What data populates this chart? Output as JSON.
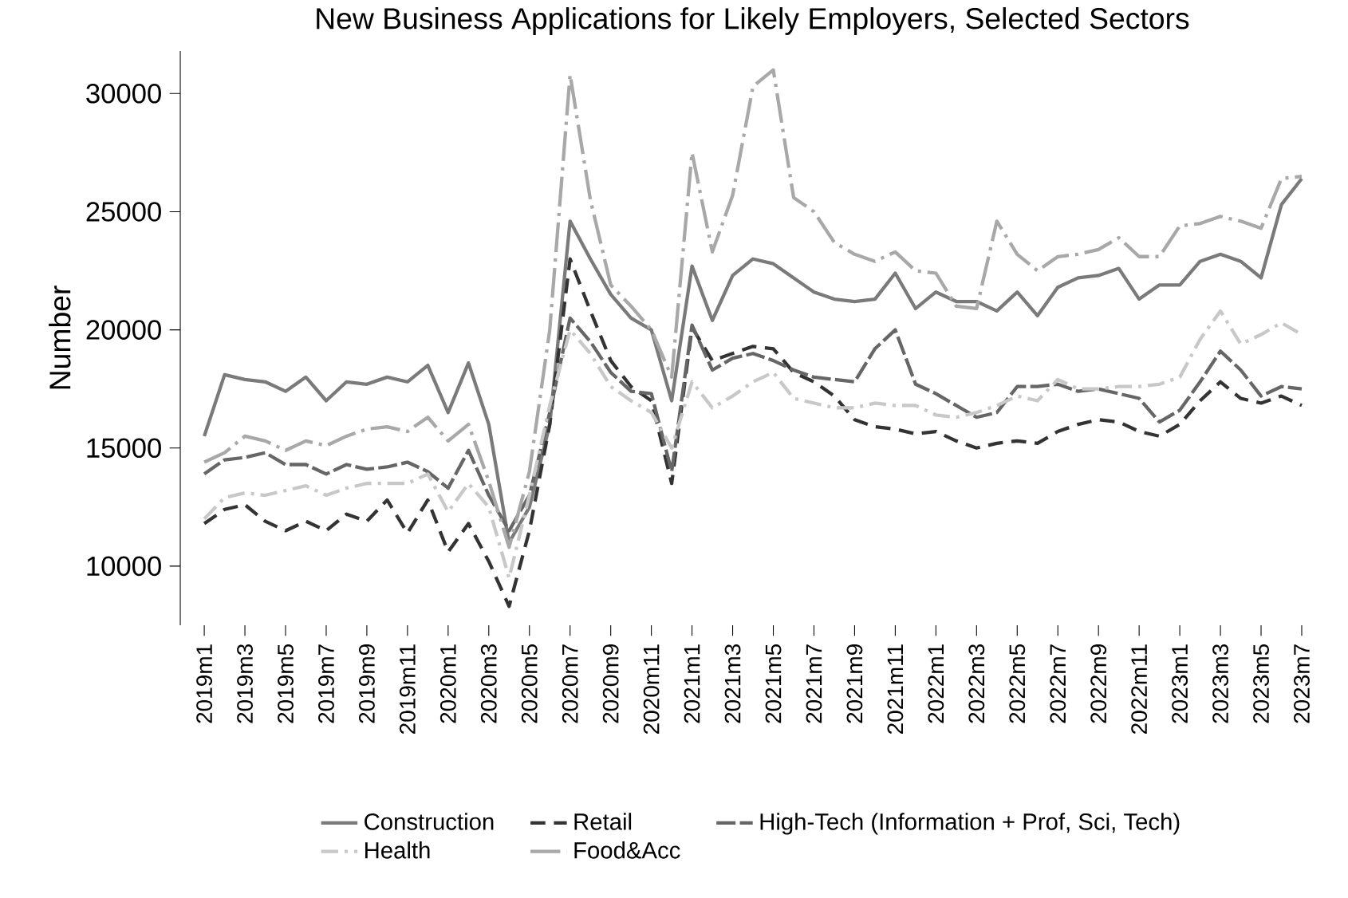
{
  "chart_data": {
    "type": "line",
    "title": "New Business Applications for Likely Employers, Selected Sectors",
    "ylabel": "Number",
    "categories": [
      "2019m1",
      null,
      "2019m3",
      null,
      "2019m5",
      null,
      "2019m7",
      null,
      "2019m9",
      null,
      "2019m11",
      null,
      "2020m1",
      null,
      "2020m3",
      null,
      "2020m5",
      null,
      "2020m7",
      null,
      "2020m9",
      null,
      "2020m11",
      null,
      "2021m1",
      null,
      "2021m3",
      null,
      "2021m5",
      null,
      "2021m7",
      null,
      "2021m9",
      null,
      "2021m11",
      null,
      "2022m1",
      null,
      "2022m3",
      null,
      "2022m5",
      null,
      "2022m7",
      null,
      "2022m9",
      null,
      "2022m11",
      null,
      "2023m1",
      null,
      "2023m3",
      null,
      "2023m5",
      null,
      "2023m7"
    ],
    "series": [
      {
        "name": "Construction",
        "color": "#7a7a7a",
        "line_style": "solid",
        "values": [
          15500,
          18100,
          17900,
          17800,
          17400,
          18000,
          17000,
          17800,
          17700,
          18000,
          17800,
          18500,
          16500,
          18600,
          16000,
          11000,
          12500,
          16000,
          24600,
          23000,
          21500,
          20500,
          20000,
          17000,
          22700,
          20400,
          22300,
          23000,
          22800,
          22200,
          21600,
          21300,
          21200,
          21300,
          22400,
          20900,
          21600,
          21200,
          21200,
          20800,
          21600,
          20600,
          21800,
          22200,
          22300,
          22600,
          21300,
          21900,
          21900,
          22900,
          23200,
          22900,
          22200,
          25300,
          26400
        ]
      },
      {
        "name": "Retail",
        "color": "#333333",
        "line_style": "dashed",
        "values": [
          11800,
          12400,
          12600,
          11900,
          11500,
          11900,
          11500,
          12200,
          11900,
          12800,
          11400,
          12800,
          10600,
          11800,
          10200,
          8300,
          11500,
          16000,
          23000,
          20800,
          18700,
          17600,
          17000,
          13500,
          20100,
          18700,
          19000,
          19300,
          19200,
          18200,
          17800,
          17200,
          16200,
          15900,
          15800,
          15600,
          15700,
          15300,
          15000,
          15200,
          15300,
          15200,
          15700,
          16000,
          16200,
          16100,
          15700,
          15500,
          16000,
          17000,
          17800,
          17100,
          16900,
          17200,
          16800
        ]
      },
      {
        "name": "High-Tech (Information + Prof, Sci, Tech)",
        "color": "#666666",
        "line_style": "longdashed",
        "values": [
          13900,
          14500,
          14600,
          14800,
          14300,
          14300,
          13900,
          14300,
          14100,
          14200,
          14400,
          14000,
          13300,
          14900,
          13000,
          11500,
          13000,
          16500,
          20500,
          19500,
          18200,
          17400,
          17300,
          14000,
          20200,
          18300,
          18800,
          19000,
          18700,
          18300,
          18000,
          17900,
          17800,
          19200,
          20000,
          17700,
          17300,
          16800,
          16300,
          16500,
          17600,
          17600,
          17700,
          17400,
          17500,
          17300,
          17100,
          16100,
          16600,
          17800,
          19100,
          18300,
          17200,
          17600,
          17500
        ]
      },
      {
        "name": "Health",
        "color": "#c8c8c8",
        "line_style": "dashdot",
        "values": [
          12000,
          12900,
          13100,
          13000,
          13200,
          13400,
          13000,
          13300,
          13500,
          13500,
          13500,
          13900,
          12300,
          13500,
          12500,
          9500,
          13000,
          16800,
          20000,
          19000,
          17600,
          17000,
          16500,
          15000,
          17800,
          16700,
          17200,
          17800,
          18200,
          17100,
          16900,
          16700,
          16700,
          16900,
          16800,
          16800,
          16400,
          16300,
          16500,
          16800,
          17200,
          17000,
          17900,
          17500,
          17500,
          17600,
          17600,
          17700,
          18000,
          19600,
          20800,
          19400,
          19800,
          20300,
          19800
        ]
      },
      {
        "name": "Food&Acc",
        "color": "#a8a8a8",
        "line_style": "longdashdot",
        "values": [
          14400,
          14800,
          15500,
          15300,
          14900,
          15300,
          15100,
          15500,
          15800,
          15900,
          15700,
          16300,
          15300,
          16000,
          13600,
          10800,
          14000,
          20000,
          30800,
          25500,
          21900,
          21000,
          20000,
          18000,
          27500,
          23300,
          25700,
          30300,
          31000,
          25600,
          25000,
          23700,
          23200,
          22900,
          23300,
          22500,
          22400,
          21000,
          20900,
          24600,
          23200,
          22500,
          23100,
          23200,
          23400,
          23900,
          23100,
          23100,
          24400,
          24500,
          24800,
          24600,
          24300,
          26400,
          26500
        ]
      }
    ],
    "ylim": [
      7500,
      31800
    ],
    "yticks": [
      10000,
      15000,
      20000,
      25000,
      30000
    ],
    "grid": false,
    "legend": "bottom",
    "marker": "none"
  }
}
